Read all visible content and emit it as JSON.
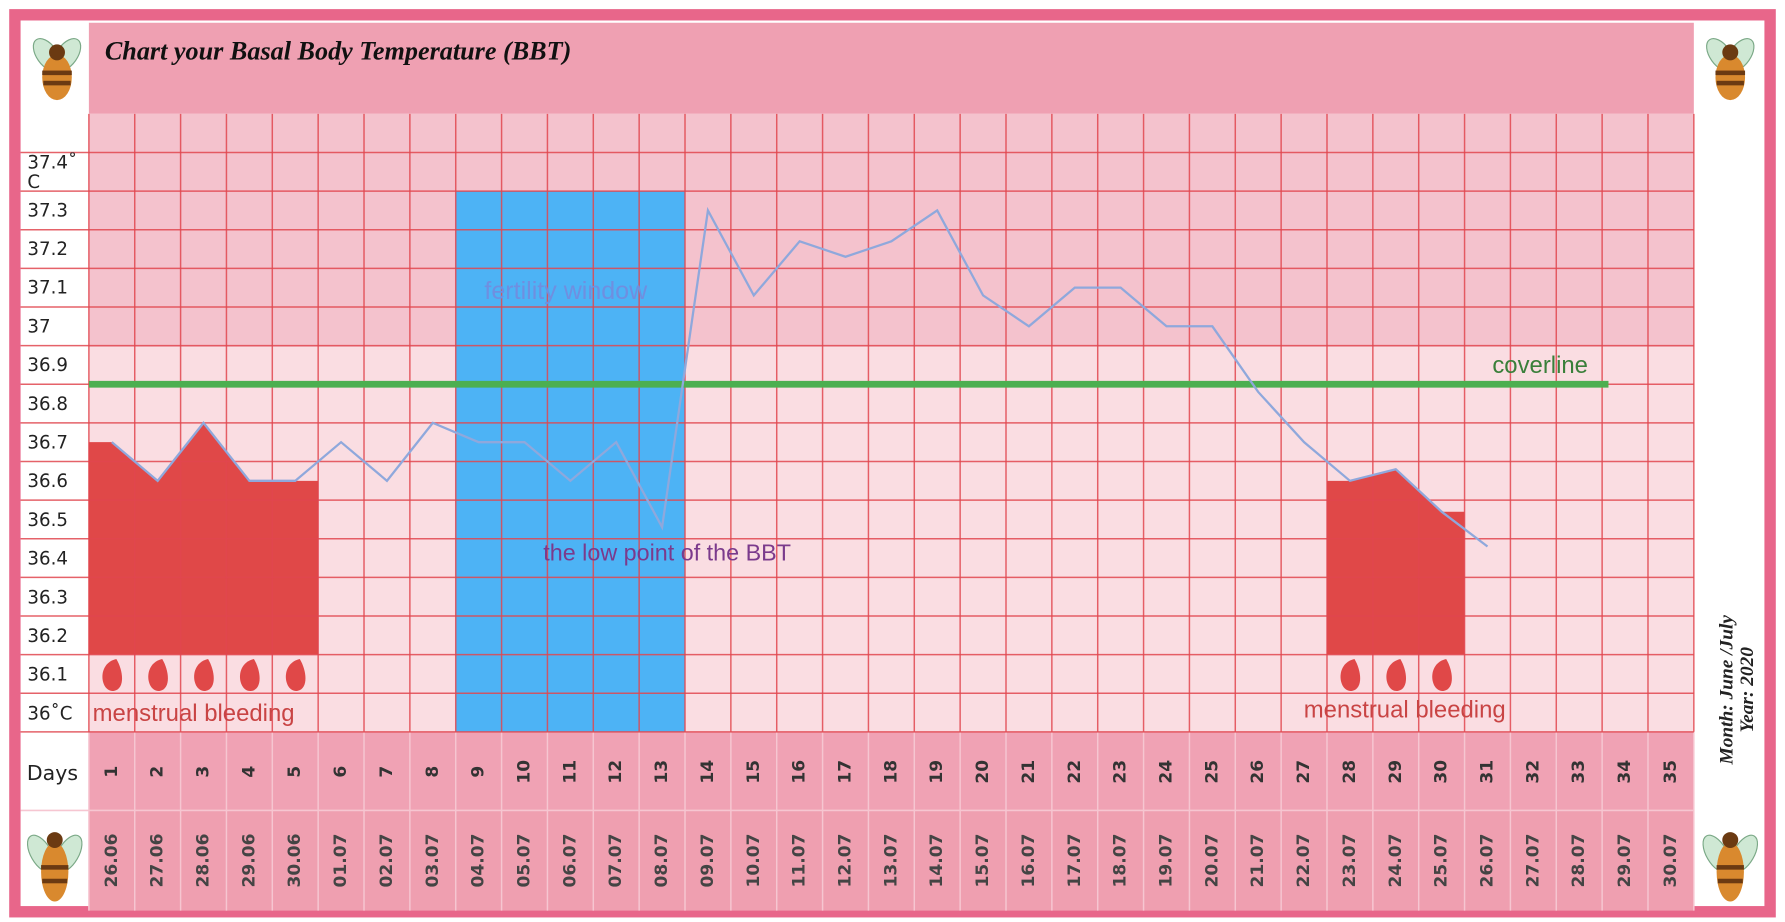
{
  "chart_data": {
    "type": "line",
    "title": "Chart your Basal Body Temperature (BBT)",
    "x_label": "Days",
    "categories": [
      "1",
      "2",
      "3",
      "4",
      "5",
      "6",
      "7",
      "8",
      "9",
      "10",
      "11",
      "12",
      "13",
      "14",
      "15",
      "16",
      "17",
      "18",
      "19",
      "20",
      "21",
      "22",
      "23",
      "24",
      "25",
      "26",
      "27",
      "28",
      "29",
      "30",
      "31",
      "32",
      "33",
      "34",
      "35"
    ],
    "dates": [
      "26.06",
      "27.06",
      "28.06",
      "29.06",
      "30.06",
      "01.07",
      "02.07",
      "03.07",
      "04.07",
      "05.07",
      "06.07",
      "07.07",
      "08.07",
      "09.07",
      "10.07",
      "11.07",
      "12.07",
      "13.07",
      "14.07",
      "15.07",
      "16.07",
      "17.07",
      "18.07",
      "19.07",
      "20.07",
      "21.07",
      "22.07",
      "23.07",
      "24.07",
      "25.07",
      "26.07",
      "27.07",
      "28.07",
      "29.07",
      "30.07"
    ],
    "values": [
      36.7,
      36.6,
      36.75,
      36.6,
      36.6,
      36.7,
      36.6,
      36.75,
      36.7,
      36.7,
      36.6,
      36.7,
      36.48,
      37.3,
      37.08,
      37.22,
      37.18,
      37.22,
      37.3,
      37.08,
      37.0,
      37.1,
      37.1,
      37.0,
      37.0,
      36.83,
      36.7,
      36.6,
      36.63,
      36.52,
      36.43,
      null,
      null,
      null,
      null
    ],
    "color": "#8fa8dc",
    "ylim": [
      35.95,
      37.55
    ],
    "yticks": [
      {
        "value": 37.4,
        "label": "37.4˚ C"
      },
      37.3,
      37.2,
      37.1,
      37,
      36.9,
      36.8,
      36.7,
      36.6,
      36.5,
      36.4,
      36.3,
      36.2,
      36.1,
      {
        "value": 36,
        "label": "36˚C"
      }
    ],
    "grid": true,
    "coverline": {
      "value": 36.85,
      "label": "coverline",
      "color": "#4caf50"
    },
    "fertility_window": {
      "days": [
        9,
        13
      ],
      "label": "fertility window",
      "color": "#4db3f5"
    },
    "low_point_label": "the low point of the BBT",
    "menstrual_bleeding": {
      "color": "#e04848",
      "periods": [
        {
          "days": [
            1,
            5
          ],
          "label": "menstrual bleeding"
        },
        {
          "days": [
            28,
            30
          ],
          "label": "menstrual bleeding"
        }
      ]
    },
    "month": "Month: June /July",
    "year": "Year: 2020"
  }
}
